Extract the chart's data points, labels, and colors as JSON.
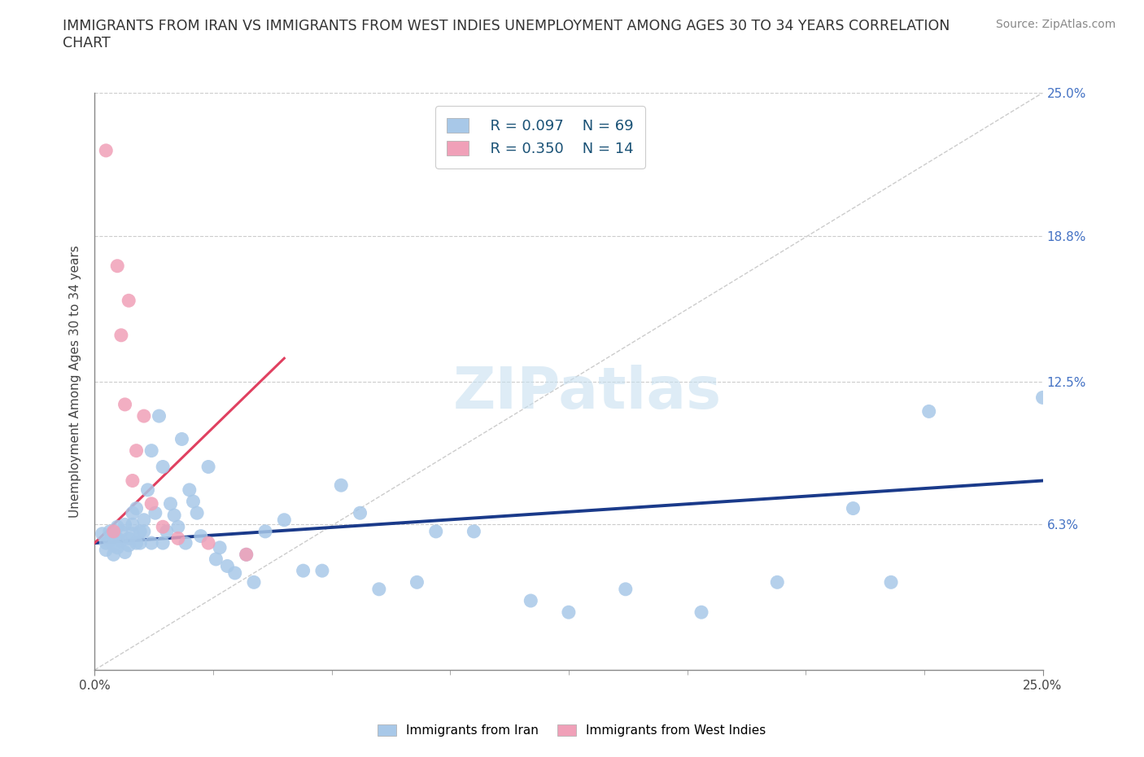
{
  "title": "IMMIGRANTS FROM IRAN VS IMMIGRANTS FROM WEST INDIES UNEMPLOYMENT AMONG AGES 30 TO 34 YEARS CORRELATION\nCHART",
  "source_text": "Source: ZipAtlas.com",
  "ylabel": "Unemployment Among Ages 30 to 34 years",
  "xmin": 0.0,
  "xmax": 0.25,
  "ymin": 0.0,
  "ymax": 0.25,
  "ytick_values": [
    0.0,
    0.063,
    0.125,
    0.188,
    0.25
  ],
  "iran_R": 0.097,
  "iran_N": 69,
  "wi_R": 0.35,
  "wi_N": 14,
  "iran_color": "#a8c8e8",
  "wi_color": "#f0a0b8",
  "iran_line_color": "#1a3a8a",
  "wi_line_color": "#e04060",
  "diagonal_color": "#cccccc",
  "watermark": "ZIPatlas",
  "iran_trend_x": [
    0.0,
    0.25
  ],
  "iran_trend_y": [
    0.055,
    0.082
  ],
  "wi_trend_x": [
    0.0,
    0.05
  ],
  "wi_trend_y": [
    0.055,
    0.135
  ],
  "iran_x": [
    0.002,
    0.003,
    0.003,
    0.004,
    0.004,
    0.005,
    0.005,
    0.005,
    0.006,
    0.006,
    0.006,
    0.007,
    0.007,
    0.008,
    0.008,
    0.009,
    0.009,
    0.01,
    0.01,
    0.01,
    0.011,
    0.011,
    0.012,
    0.012,
    0.013,
    0.013,
    0.014,
    0.015,
    0.015,
    0.016,
    0.017,
    0.018,
    0.018,
    0.019,
    0.02,
    0.021,
    0.022,
    0.023,
    0.024,
    0.025,
    0.026,
    0.027,
    0.028,
    0.03,
    0.032,
    0.033,
    0.035,
    0.037,
    0.04,
    0.042,
    0.045,
    0.05,
    0.055,
    0.06,
    0.065,
    0.07,
    0.075,
    0.085,
    0.09,
    0.1,
    0.115,
    0.125,
    0.14,
    0.16,
    0.18,
    0.2,
    0.21,
    0.22,
    0.25
  ],
  "iran_y": [
    0.059,
    0.055,
    0.052,
    0.06,
    0.056,
    0.058,
    0.054,
    0.05,
    0.062,
    0.057,
    0.053,
    0.06,
    0.056,
    0.051,
    0.063,
    0.057,
    0.054,
    0.068,
    0.063,
    0.059,
    0.055,
    0.07,
    0.06,
    0.055,
    0.065,
    0.06,
    0.078,
    0.055,
    0.095,
    0.068,
    0.11,
    0.088,
    0.055,
    0.06,
    0.072,
    0.067,
    0.062,
    0.1,
    0.055,
    0.078,
    0.073,
    0.068,
    0.058,
    0.088,
    0.048,
    0.053,
    0.045,
    0.042,
    0.05,
    0.038,
    0.06,
    0.065,
    0.043,
    0.043,
    0.08,
    0.068,
    0.035,
    0.038,
    0.06,
    0.06,
    0.03,
    0.025,
    0.035,
    0.025,
    0.038,
    0.07,
    0.038,
    0.112,
    0.118
  ],
  "wi_x": [
    0.003,
    0.005,
    0.006,
    0.007,
    0.008,
    0.009,
    0.01,
    0.011,
    0.013,
    0.015,
    0.018,
    0.022,
    0.03,
    0.04
  ],
  "wi_y": [
    0.225,
    0.06,
    0.175,
    0.145,
    0.115,
    0.16,
    0.082,
    0.095,
    0.11,
    0.072,
    0.062,
    0.057,
    0.055,
    0.05
  ]
}
